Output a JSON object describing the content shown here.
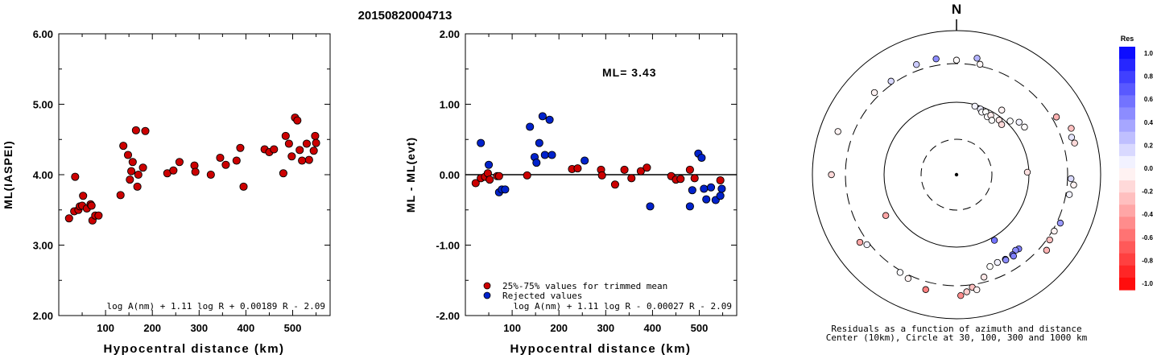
{
  "page_title": "20150820004713",
  "chart_data": [
    {
      "type": "scatter",
      "title": "",
      "xlabel": "Hypocentral distance (km)",
      "ylabel": "ML(IASPEI)",
      "xlim": [
        0,
        580
      ],
      "ylim": [
        2.0,
        6.0
      ],
      "x_ticks": [
        {
          "v": 100,
          "label": "100"
        },
        {
          "v": 200,
          "label": "200"
        },
        {
          "v": 300,
          "label": "300"
        },
        {
          "v": 400,
          "label": "400"
        },
        {
          "v": 500,
          "label": "500"
        }
      ],
      "y_ticks": [
        {
          "v": 2,
          "label": "2.00"
        },
        {
          "v": 3,
          "label": "3.00"
        },
        {
          "v": 4,
          "label": "4.00"
        },
        {
          "v": 5,
          "label": "5.00"
        },
        {
          "v": 6,
          "label": "6.00"
        }
      ],
      "formula": "log A(nm) + 1.11 log R + 0.00189 R - 2.09",
      "marker_color": "#cc0000",
      "points": [
        [
          22,
          3.38
        ],
        [
          33,
          3.48
        ],
        [
          35,
          3.97
        ],
        [
          42,
          3.5
        ],
        [
          45,
          3.55
        ],
        [
          52,
          3.7
        ],
        [
          50,
          3.56
        ],
        [
          60,
          3.52
        ],
        [
          68,
          3.58
        ],
        [
          70,
          3.56
        ],
        [
          72,
          3.35
        ],
        [
          78,
          3.42
        ],
        [
          85,
          3.42
        ],
        [
          132,
          3.71
        ],
        [
          138,
          4.41
        ],
        [
          148,
          4.28
        ],
        [
          152,
          3.93
        ],
        [
          155,
          4.05
        ],
        [
          158,
          4.18
        ],
        [
          165,
          4.63
        ],
        [
          170,
          4.0
        ],
        [
          168,
          3.83
        ],
        [
          180,
          4.1
        ],
        [
          185,
          4.62
        ],
        [
          232,
          4.02
        ],
        [
          245,
          4.06
        ],
        [
          258,
          4.18
        ],
        [
          290,
          4.13
        ],
        [
          292,
          4.04
        ],
        [
          325,
          4.0
        ],
        [
          345,
          4.24
        ],
        [
          357,
          4.14
        ],
        [
          380,
          4.2
        ],
        [
          388,
          4.38
        ],
        [
          395,
          3.83
        ],
        [
          440,
          4.36
        ],
        [
          450,
          4.32
        ],
        [
          460,
          4.36
        ],
        [
          480,
          4.02
        ],
        [
          485,
          4.55
        ],
        [
          492,
          4.44
        ],
        [
          498,
          4.26
        ],
        [
          505,
          4.81
        ],
        [
          510,
          4.77
        ],
        [
          515,
          4.35
        ],
        [
          520,
          4.2
        ],
        [
          530,
          4.44
        ],
        [
          535,
          4.21
        ],
        [
          545,
          4.34
        ],
        [
          548,
          4.55
        ],
        [
          550,
          4.45
        ]
      ]
    },
    {
      "type": "scatter",
      "title": "",
      "xlabel": "Hypocentral distance (km)",
      "ylabel": "ML - ML(evt)",
      "xlim": [
        0,
        580
      ],
      "ylim": [
        -2.0,
        2.0
      ],
      "x_ticks": [
        {
          "v": 100,
          "label": "100"
        },
        {
          "v": 200,
          "label": "200"
        },
        {
          "v": 300,
          "label": "300"
        },
        {
          "v": 400,
          "label": "400"
        },
        {
          "v": 500,
          "label": "500"
        }
      ],
      "y_ticks": [
        {
          "v": -2,
          "label": "-2.00"
        },
        {
          "v": -1,
          "label": "-1.00"
        },
        {
          "v": 0,
          "label": "0.00"
        },
        {
          "v": 1,
          "label": "1.00"
        },
        {
          "v": 2,
          "label": "2.00"
        }
      ],
      "annotation": "ML= 3.43",
      "formula": "log A(nm) + 1.11 log R - 0.00027 R - 2.09",
      "legend": [
        {
          "label": "25%-75% values for trimmed mean",
          "color": "#cc0000"
        },
        {
          "label": "Rejected values",
          "color": "#0022cc"
        }
      ],
      "series": [
        {
          "name": "25%-75% values for trimmed mean",
          "color": "#cc0000",
          "points": [
            [
              22,
              -0.12
            ],
            [
              33,
              -0.05
            ],
            [
              42,
              -0.03
            ],
            [
              48,
              0.02
            ],
            [
              52,
              -0.07
            ],
            [
              68,
              -0.02
            ],
            [
              72,
              -0.02
            ],
            [
              132,
              -0.01
            ],
            [
              228,
              0.08
            ],
            [
              240,
              0.09
            ],
            [
              290,
              0.07
            ],
            [
              292,
              -0.01
            ],
            [
              320,
              -0.14
            ],
            [
              340,
              0.07
            ],
            [
              355,
              -0.05
            ],
            [
              375,
              0.05
            ],
            [
              388,
              0.1
            ],
            [
              440,
              -0.02
            ],
            [
              450,
              -0.07
            ],
            [
              460,
              -0.06
            ],
            [
              480,
              0.07
            ],
            [
              490,
              -0.05
            ],
            [
              545,
              -0.08
            ]
          ]
        },
        {
          "name": "Rejected values",
          "color": "#0022cc",
          "points": [
            [
              33,
              0.45
            ],
            [
              50,
              0.14
            ],
            [
              72,
              -0.25
            ],
            [
              78,
              -0.21
            ],
            [
              85,
              -0.21
            ],
            [
              138,
              0.68
            ],
            [
              148,
              0.25
            ],
            [
              152,
              0.17
            ],
            [
              158,
              0.45
            ],
            [
              165,
              0.83
            ],
            [
              170,
              0.28
            ],
            [
              180,
              0.78
            ],
            [
              185,
              0.28
            ],
            [
              255,
              0.2
            ],
            [
              395,
              -0.45
            ],
            [
              480,
              -0.45
            ],
            [
              485,
              -0.22
            ],
            [
              498,
              0.3
            ],
            [
              505,
              0.24
            ],
            [
              510,
              -0.2
            ],
            [
              515,
              -0.35
            ],
            [
              525,
              -0.18
            ],
            [
              535,
              -0.36
            ],
            [
              545,
              -0.3
            ],
            [
              548,
              -0.2
            ]
          ]
        }
      ]
    },
    {
      "type": "scatter",
      "subtype": "polar-residual-map",
      "north_label": "N",
      "caption_line1": "Residuals as a function of azimuth and distance",
      "caption_line2": "Center (10km), Circle at 30, 100, 300 and 1000 km",
      "colorbar": {
        "title": "Res",
        "labels": [
          "1.0",
          "0.8",
          "0.6",
          "0.4",
          "0.2",
          "0.0",
          "-0.2",
          "-0.4",
          "-0.6",
          "-0.8",
          "-1.0"
        ],
        "max_color": "#0000ff",
        "min_color": "#ff0000"
      },
      "rings_km": [
        30,
        100,
        300,
        1000
      ],
      "points_azimuth_distance_residual": [
        [
          -10,
          380,
          0.45
        ],
        [
          0,
          340,
          -0.02
        ],
        [
          10,
          390,
          0.3
        ],
        [
          12,
          320,
          -0.03
        ],
        [
          -20,
          375,
          0.2
        ],
        [
          -35,
          335,
          0.15
        ],
        [
          -45,
          360,
          -0.05
        ],
        [
          -70,
          520,
          -0.05
        ],
        [
          15,
          95,
          0.05
        ],
        [
          20,
          92,
          0.08
        ],
        [
          22,
          85,
          0.03
        ],
        [
          25,
          90,
          0.0
        ],
        [
          28,
          80,
          0.02
        ],
        [
          30,
          88,
          -0.08
        ],
        [
          33,
          78,
          0.0
        ],
        [
          38,
          90,
          -0.1
        ],
        [
          42,
          85,
          -0.15
        ],
        [
          35,
          120,
          -0.05
        ],
        [
          45,
          110,
          0.0
        ],
        [
          50,
          130,
          0.05
        ],
        [
          55,
          135,
          -0.02
        ],
        [
          88,
          95,
          -0.12
        ],
        [
          60,
          350,
          -0.3
        ],
        [
          72,
          430,
          0.1
        ],
        [
          68,
          475,
          -0.25
        ],
        [
          75,
          450,
          -0.15
        ],
        [
          92,
          340,
          0.15
        ],
        [
          100,
          340,
          0.05
        ],
        [
          95,
          380,
          -0.05
        ],
        [
          115,
          340,
          0.4
        ],
        [
          120,
          320,
          -0.05
        ],
        [
          125,
          330,
          -0.25
        ],
        [
          130,
          380,
          -0.3
        ],
        [
          150,
          110,
          0.55
        ],
        [
          140,
          200,
          0.5
        ],
        [
          142,
          195,
          0.45
        ],
        [
          145,
          205,
          0.55
        ],
        [
          150,
          205,
          0.6
        ],
        [
          145,
          215,
          0.5
        ],
        [
          150,
          210,
          0.45
        ],
        [
          155,
          200,
          0.05
        ],
        [
          160,
          205,
          0.0
        ],
        [
          165,
          260,
          -0.1
        ],
        [
          172,
          330,
          -0.25
        ],
        [
          170,
          370,
          -0.05
        ],
        [
          175,
          380,
          -0.2
        ],
        [
          178,
          430,
          -0.45
        ],
        [
          195,
          400,
          -0.5
        ],
        [
          205,
          340,
          -0.05
        ],
        [
          210,
          320,
          0.02
        ],
        [
          235,
          385,
          -0.35
        ],
        [
          232,
          330,
          0.05
        ],
        [
          240,
          130,
          -0.35
        ],
        [
          270,
          500,
          -0.15
        ]
      ]
    }
  ]
}
